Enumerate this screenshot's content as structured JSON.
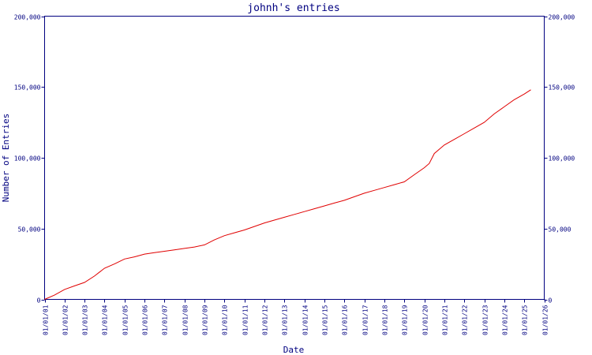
{
  "chart_data": {
    "type": "line",
    "title": "johnh's entries",
    "xlabel": "Date",
    "ylabel": "Number of Entries",
    "xlim": [
      "01/01/01",
      "01/01/26"
    ],
    "ylim": [
      0,
      200000
    ],
    "grid": false,
    "yticks": [
      {
        "value": 0,
        "label": "0"
      },
      {
        "value": 50000,
        "label": "50,000"
      },
      {
        "value": 100000,
        "label": "100,000"
      },
      {
        "value": 150000,
        "label": "150,000"
      },
      {
        "value": 200000,
        "label": "200,000"
      }
    ],
    "xticks": [
      "01/01/01",
      "01/01/02",
      "01/01/03",
      "01/01/04",
      "01/01/05",
      "01/01/06",
      "01/01/07",
      "01/01/08",
      "01/01/09",
      "01/01/10",
      "01/01/11",
      "01/01/12",
      "01/01/13",
      "01/01/14",
      "01/01/15",
      "01/01/16",
      "01/01/17",
      "01/01/18",
      "01/01/19",
      "01/01/20",
      "01/01/21",
      "01/01/22",
      "01/01/23",
      "01/01/24",
      "01/01/25",
      "01/01/26"
    ],
    "series": [
      {
        "color": "#e00000",
        "x": [
          "2001-01-01",
          "2001-07-01",
          "2002-01-01",
          "2002-07-01",
          "2003-01-01",
          "2003-07-01",
          "2004-01-01",
          "2004-07-01",
          "2005-01-01",
          "2005-07-01",
          "2006-01-01",
          "2006-07-01",
          "2007-01-01",
          "2007-07-01",
          "2008-01-01",
          "2008-07-01",
          "2009-01-01",
          "2009-07-01",
          "2010-01-01",
          "2010-07-01",
          "2011-01-01",
          "2011-07-01",
          "2012-01-01",
          "2012-07-01",
          "2013-01-01",
          "2013-07-01",
          "2014-01-01",
          "2014-07-01",
          "2015-01-01",
          "2015-07-01",
          "2016-01-01",
          "2016-07-01",
          "2017-01-01",
          "2017-07-01",
          "2018-01-01",
          "2018-07-01",
          "2019-01-01",
          "2019-07-01",
          "2020-01-01",
          "2020-04-01",
          "2020-07-01",
          "2021-01-01",
          "2021-07-01",
          "2022-01-01",
          "2022-07-01",
          "2023-01-01",
          "2023-07-01",
          "2024-01-01",
          "2024-07-01",
          "2025-01-01",
          "2025-05-01"
        ],
        "y": [
          0,
          3000,
          7000,
          9500,
          12000,
          16500,
          22000,
          25000,
          28500,
          30000,
          32000,
          33000,
          34000,
          35000,
          36000,
          37000,
          38500,
          42000,
          45000,
          47000,
          49000,
          51500,
          54000,
          56000,
          58000,
          60000,
          62000,
          64000,
          66000,
          68000,
          70000,
          72500,
          75000,
          77000,
          79000,
          81000,
          83000,
          88000,
          93000,
          96000,
          103000,
          109000,
          113000,
          117000,
          121000,
          125000,
          131000,
          136000,
          141000,
          145000,
          148000
        ]
      }
    ]
  }
}
